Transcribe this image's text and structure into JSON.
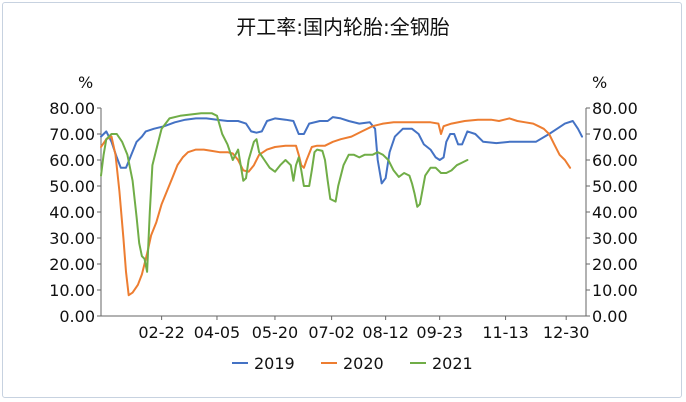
{
  "chart_data": {
    "type": "line",
    "title": "开工率:国内轮胎:全钢胎",
    "y_unit_left": "%",
    "y_unit_right": "%",
    "ylim": [
      0,
      80
    ],
    "y_ticks": [
      "0.00",
      "10.00",
      "20.00",
      "30.00",
      "40.00",
      "50.00",
      "60.00",
      "70.00",
      "80.00"
    ],
    "x_ticks": [
      "02-22",
      "04-05",
      "05-20",
      "07-02",
      "08-12",
      "09-23",
      "11-13",
      "12-30"
    ],
    "x_tick_pos": [
      46,
      88,
      132,
      175,
      216,
      257,
      307,
      353
    ],
    "x_range": [
      0,
      365
    ],
    "legend_position": "bottom",
    "grid": false,
    "series": [
      {
        "name": "2019",
        "color": "#4472c4",
        "points": [
          [
            0,
            69
          ],
          [
            4,
            71
          ],
          [
            8,
            67
          ],
          [
            12,
            61
          ],
          [
            15,
            57
          ],
          [
            19,
            57
          ],
          [
            23,
            62
          ],
          [
            27,
            67
          ],
          [
            31,
            69
          ],
          [
            34,
            71
          ],
          [
            40,
            72
          ],
          [
            48,
            73
          ],
          [
            56,
            74.5
          ],
          [
            64,
            75.5
          ],
          [
            72,
            76
          ],
          [
            80,
            76
          ],
          [
            88,
            75.5
          ],
          [
            96,
            75
          ],
          [
            104,
            75
          ],
          [
            110,
            74
          ],
          [
            114,
            71
          ],
          [
            118,
            70.5
          ],
          [
            122,
            71
          ],
          [
            126,
            75
          ],
          [
            132,
            76
          ],
          [
            140,
            75.5
          ],
          [
            146,
            75
          ],
          [
            150,
            70
          ],
          [
            154,
            70
          ],
          [
            158,
            74
          ],
          [
            166,
            75
          ],
          [
            172,
            75
          ],
          [
            176,
            76.5
          ],
          [
            182,
            76
          ],
          [
            188,
            75
          ],
          [
            196,
            74
          ],
          [
            204,
            74.5
          ],
          [
            208,
            72
          ],
          [
            210,
            60
          ],
          [
            213,
            51
          ],
          [
            216,
            53
          ],
          [
            219,
            63
          ],
          [
            223,
            69
          ],
          [
            229,
            72
          ],
          [
            236,
            72
          ],
          [
            241,
            70
          ],
          [
            245,
            66
          ],
          [
            250,
            64
          ],
          [
            254,
            61
          ],
          [
            257,
            60
          ],
          [
            260,
            61
          ],
          [
            262,
            67
          ],
          [
            265,
            70
          ],
          [
            268,
            70
          ],
          [
            271,
            66
          ],
          [
            274,
            66
          ],
          [
            278,
            71
          ],
          [
            284,
            70
          ],
          [
            290,
            67
          ],
          [
            300,
            66.5
          ],
          [
            310,
            67
          ],
          [
            320,
            67
          ],
          [
            330,
            67
          ],
          [
            340,
            70
          ],
          [
            346,
            72
          ],
          [
            352,
            74
          ],
          [
            358,
            75
          ],
          [
            362,
            72
          ],
          [
            365,
            69
          ]
        ]
      },
      {
        "name": "2020",
        "color": "#ed7d31",
        "points": [
          [
            0,
            65
          ],
          [
            4,
            68
          ],
          [
            8,
            69
          ],
          [
            11,
            62
          ],
          [
            14,
            48
          ],
          [
            17,
            30
          ],
          [
            19,
            17
          ],
          [
            21,
            8
          ],
          [
            24,
            9
          ],
          [
            28,
            12
          ],
          [
            31,
            16
          ],
          [
            35,
            24
          ],
          [
            38,
            31
          ],
          [
            42,
            36
          ],
          [
            46,
            43
          ],
          [
            50,
            48
          ],
          [
            54,
            53
          ],
          [
            58,
            58
          ],
          [
            62,
            61
          ],
          [
            66,
            63
          ],
          [
            72,
            64
          ],
          [
            78,
            64
          ],
          [
            84,
            63.5
          ],
          [
            90,
            63
          ],
          [
            96,
            63
          ],
          [
            100,
            62.5
          ],
          [
            104,
            60
          ],
          [
            108,
            56
          ],
          [
            112,
            55.5
          ],
          [
            116,
            58
          ],
          [
            120,
            62
          ],
          [
            126,
            64
          ],
          [
            132,
            65
          ],
          [
            140,
            65.5
          ],
          [
            148,
            65.5
          ],
          [
            150,
            62
          ],
          [
            152,
            58
          ],
          [
            154,
            57
          ],
          [
            156,
            60
          ],
          [
            160,
            65
          ],
          [
            164,
            65.5
          ],
          [
            170,
            65.5
          ],
          [
            176,
            67
          ],
          [
            182,
            68
          ],
          [
            190,
            69
          ],
          [
            198,
            71
          ],
          [
            206,
            73
          ],
          [
            214,
            74
          ],
          [
            222,
            74.5
          ],
          [
            232,
            74.5
          ],
          [
            242,
            74.5
          ],
          [
            250,
            74.5
          ],
          [
            256,
            74
          ],
          [
            258,
            70
          ],
          [
            260,
            73
          ],
          [
            266,
            74
          ],
          [
            276,
            75
          ],
          [
            286,
            75.5
          ],
          [
            296,
            75.5
          ],
          [
            302,
            75
          ],
          [
            306,
            75.5
          ],
          [
            310,
            76
          ],
          [
            316,
            75
          ],
          [
            322,
            74.5
          ],
          [
            328,
            74
          ],
          [
            332,
            73
          ],
          [
            336,
            72
          ],
          [
            340,
            70
          ],
          [
            344,
            66
          ],
          [
            348,
            62
          ],
          [
            352,
            60
          ],
          [
            356,
            57
          ]
        ]
      },
      {
        "name": "2021",
        "color": "#70ad47",
        "points": [
          [
            0,
            54
          ],
          [
            2,
            62
          ],
          [
            4,
            68
          ],
          [
            8,
            70
          ],
          [
            12,
            70
          ],
          [
            16,
            67
          ],
          [
            20,
            62
          ],
          [
            24,
            52
          ],
          [
            27,
            38
          ],
          [
            29,
            28
          ],
          [
            31,
            23
          ],
          [
            33,
            22
          ],
          [
            35,
            17
          ],
          [
            37,
            40
          ],
          [
            39,
            58
          ],
          [
            42,
            64
          ],
          [
            46,
            72
          ],
          [
            52,
            76
          ],
          [
            60,
            77
          ],
          [
            68,
            77.5
          ],
          [
            76,
            78
          ],
          [
            84,
            78
          ],
          [
            88,
            77
          ],
          [
            92,
            70
          ],
          [
            96,
            66
          ],
          [
            100,
            60
          ],
          [
            104,
            64
          ],
          [
            108,
            52
          ],
          [
            110,
            53
          ],
          [
            112,
            60
          ],
          [
            116,
            67
          ],
          [
            118,
            68
          ],
          [
            120,
            63
          ],
          [
            124,
            60
          ],
          [
            128,
            57
          ],
          [
            132,
            55.5
          ],
          [
            136,
            58
          ],
          [
            140,
            60
          ],
          [
            144,
            58
          ],
          [
            146,
            52
          ],
          [
            148,
            58
          ],
          [
            150,
            61
          ],
          [
            152,
            56
          ],
          [
            154,
            50
          ],
          [
            158,
            50
          ],
          [
            160,
            56
          ],
          [
            162,
            63
          ],
          [
            164,
            64
          ],
          [
            168,
            63.5
          ],
          [
            170,
            60
          ],
          [
            172,
            52
          ],
          [
            174,
            45
          ],
          [
            178,
            44
          ],
          [
            180,
            50
          ],
          [
            184,
            58
          ],
          [
            188,
            62
          ],
          [
            192,
            62
          ],
          [
            196,
            61
          ],
          [
            200,
            62
          ],
          [
            206,
            62
          ],
          [
            210,
            63
          ],
          [
            214,
            62
          ],
          [
            218,
            60
          ],
          [
            222,
            56
          ],
          [
            226,
            53.5
          ],
          [
            230,
            55
          ],
          [
            234,
            54
          ],
          [
            236,
            51
          ],
          [
            238,
            47
          ],
          [
            240,
            42
          ],
          [
            242,
            43
          ],
          [
            246,
            54
          ],
          [
            250,
            57
          ],
          [
            254,
            57
          ],
          [
            258,
            55
          ],
          [
            262,
            55
          ],
          [
            266,
            56
          ],
          [
            270,
            58
          ],
          [
            274,
            59
          ],
          [
            278,
            60
          ]
        ]
      }
    ]
  }
}
